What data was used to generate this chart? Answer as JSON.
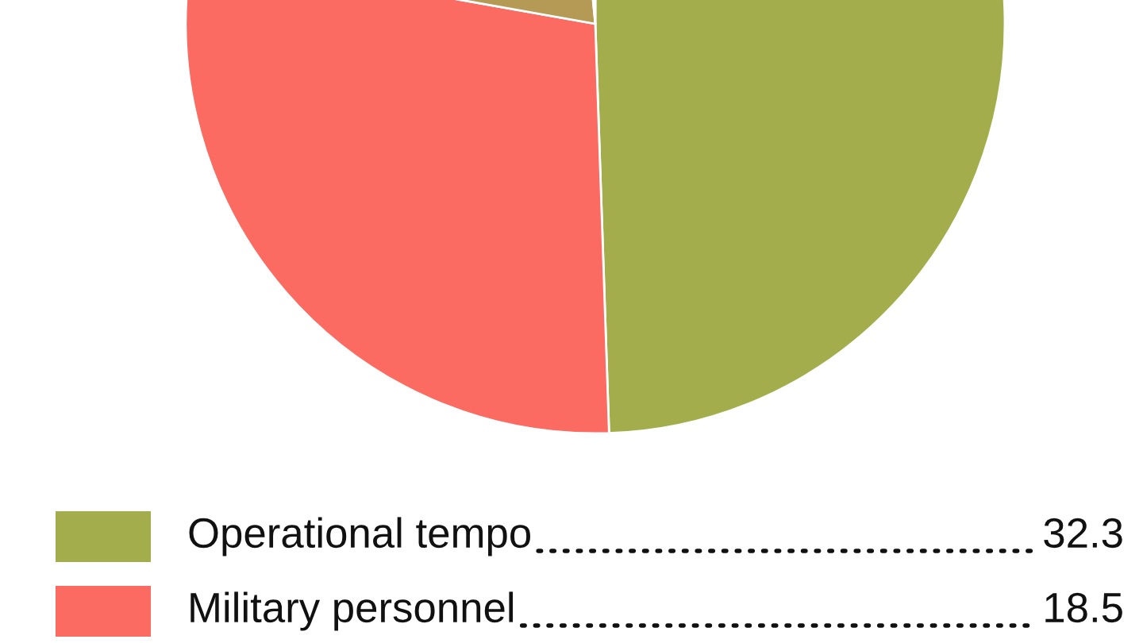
{
  "chart_data": {
    "type": "pie",
    "categories": [
      "Operational tempo",
      "Military personnel",
      null,
      null
    ],
    "values": [
      32.3,
      18.5,
      13.5,
      1.0
    ],
    "colors": [
      "#a3ad4b",
      "#fc6b62",
      "#b59a55",
      "#2a7ab0"
    ],
    "value_labels": [
      "32.3",
      "18.5",
      null,
      null
    ],
    "legend": "bottom"
  }
}
